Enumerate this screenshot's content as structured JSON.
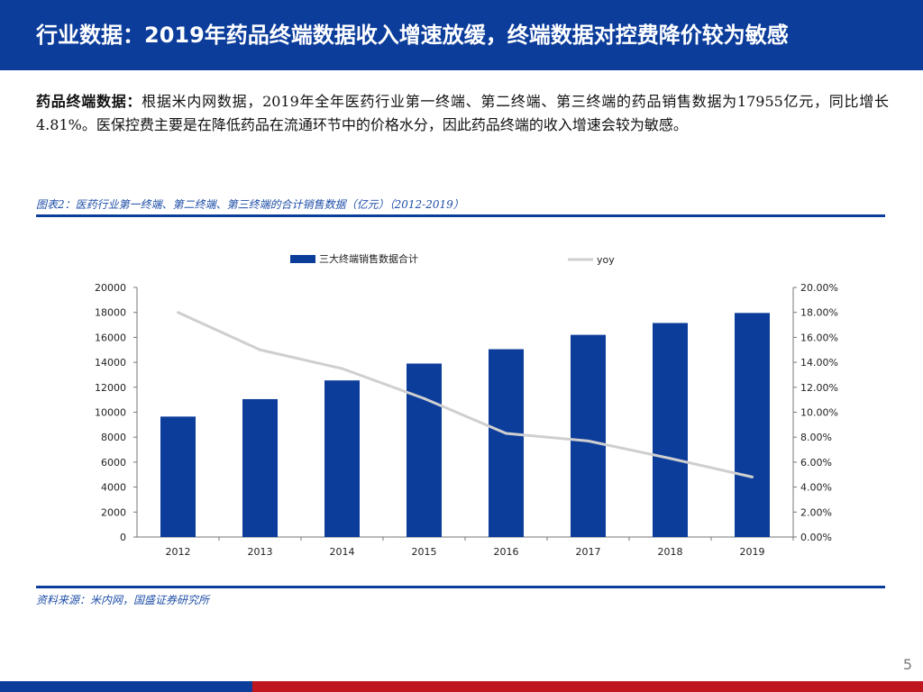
{
  "header": {
    "title": "行业数据：2019年药品终端数据收入增速放缓，终端数据对控费降价较为敏感"
  },
  "intro": {
    "lead": "药品终端数据：",
    "text": "根据米内网数据，2019年全年医药行业第一终端、第二终端、第三终端的药品销售数据为17955亿元，同比增长4.81%。医保控费主要是在降低药品在流通环节中的价格水分，因此药品终端的收入增速会较为敏感。"
  },
  "figure": {
    "caption": "图表2：医药行业第一终端、第二终端、第三终端的合计销售数据（亿元）（2012-2019）"
  },
  "source": "资料来源：米内网，国盛证券研究所",
  "page_number": "5",
  "colors": {
    "brand": "#0c3d9b",
    "footer_red": "#c0161f",
    "line": "#cfcfcf"
  },
  "chart_data": {
    "type": "bar",
    "title": "",
    "categories": [
      "2012",
      "2013",
      "2014",
      "2015",
      "2016",
      "2017",
      "2018",
      "2019"
    ],
    "series": [
      {
        "name": "三大终端销售数据合计",
        "kind": "bar",
        "axis": "left",
        "values": [
          9650,
          11050,
          12550,
          13900,
          15050,
          16200,
          17150,
          17955
        ]
      },
      {
        "name": "yoy",
        "kind": "line",
        "axis": "right",
        "values": [
          18.0,
          15.0,
          13.5,
          11.1,
          8.3,
          7.7,
          6.3,
          4.81
        ]
      }
    ],
    "ylim_left": [
      0,
      20000
    ],
    "yticks_left": [
      "0",
      "2000",
      "4000",
      "6000",
      "8000",
      "10000",
      "12000",
      "14000",
      "16000",
      "18000",
      "20000"
    ],
    "ylim_right": [
      0,
      20
    ],
    "yticks_right": [
      "0.00%",
      "2.00%",
      "4.00%",
      "6.00%",
      "8.00%",
      "10.00%",
      "12.00%",
      "14.00%",
      "16.00%",
      "18.00%",
      "20.00%"
    ],
    "legend": "top",
    "grid": false
  }
}
